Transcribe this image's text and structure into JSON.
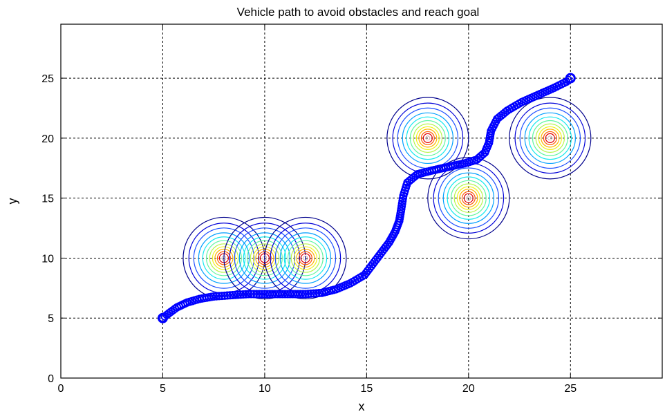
{
  "chart_data": {
    "type": "line",
    "title": "Vehicle path to avoid obstacles and reach goal",
    "xlabel": "x",
    "ylabel": "y",
    "xlim": [
      0,
      29.5
    ],
    "ylim": [
      0,
      29.5
    ],
    "xticks": [
      0,
      5,
      10,
      15,
      20,
      25
    ],
    "yticks": [
      0,
      5,
      10,
      15,
      20,
      25
    ],
    "grid": true,
    "grid_style": "dashed",
    "path_color": "#0000ff",
    "path_marker": "circle",
    "path": {
      "x": [
        5,
        5.3,
        5.7,
        6.2,
        6.8,
        7.5,
        8.3,
        9.2,
        10,
        11,
        12,
        12.8,
        13.5,
        14.2,
        14.9,
        15.3,
        15.7,
        16.1,
        16.4,
        16.6,
        16.7,
        16.8,
        17.0,
        17.5,
        18.2,
        19.0,
        19.8,
        20.4,
        20.8,
        21.0,
        21.1,
        21.4,
        21.9,
        22.6,
        23.4,
        24.2,
        24.8,
        25
      ],
      "y": [
        5,
        5.4,
        5.9,
        6.3,
        6.6,
        6.8,
        6.9,
        7.0,
        7.0,
        7.0,
        7.0,
        7.1,
        7.4,
        7.9,
        8.6,
        9.5,
        10.4,
        11.3,
        12.2,
        13.1,
        14.1,
        15.2,
        16.3,
        17.0,
        17.3,
        17.6,
        17.9,
        18.2,
        18.8,
        19.6,
        20.6,
        21.6,
        22.3,
        23.0,
        23.6,
        24.2,
        24.7,
        25
      ]
    },
    "obstacles": [
      {
        "x": 8,
        "y": 10
      },
      {
        "x": 10,
        "y": 10
      },
      {
        "x": 12,
        "y": 10
      },
      {
        "x": 18,
        "y": 20
      },
      {
        "x": 20,
        "y": 15
      },
      {
        "x": 24,
        "y": 20
      }
    ],
    "contour_levels": [
      {
        "level": 1.0,
        "color": "#00008c"
      },
      {
        "level": 0.86,
        "color": "#0000d8"
      },
      {
        "level": 0.74,
        "color": "#1d4fff"
      },
      {
        "level": 0.62,
        "color": "#009fff"
      },
      {
        "level": 0.52,
        "color": "#13e8ee"
      },
      {
        "level": 0.43,
        "color": "#5ff5a0"
      },
      {
        "level": 0.35,
        "color": "#b6f54b"
      },
      {
        "level": 0.28,
        "color": "#f2f21a"
      },
      {
        "level": 0.22,
        "color": "#ffb300"
      },
      {
        "level": 0.16,
        "color": "#ff5a00"
      },
      {
        "level": 0.11,
        "color": "#e00000"
      },
      {
        "level": 0.06,
        "color": "#7a0000"
      }
    ]
  }
}
